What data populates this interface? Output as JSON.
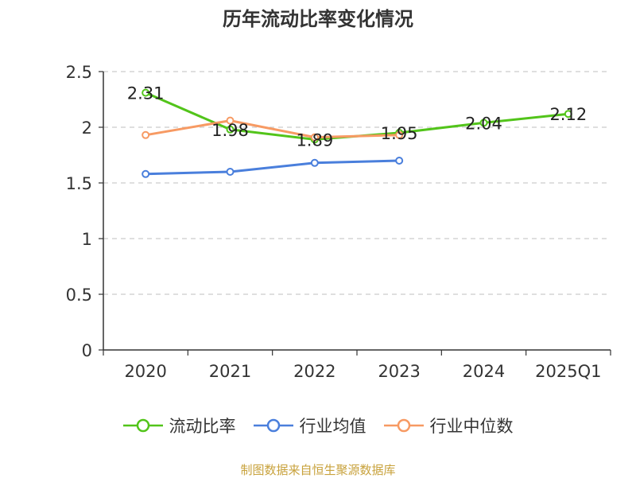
{
  "chart_data": {
    "type": "line",
    "title": "历年流动比率变化情况",
    "categories": [
      "2020",
      "2021",
      "2022",
      "2023",
      "2024",
      "2025Q1"
    ],
    "ylim": [
      0,
      2.5
    ],
    "yticks": [
      "0",
      "0.5",
      "1",
      "1.5",
      "2",
      "2.5"
    ],
    "ytick_values": [
      0,
      0.5,
      1,
      1.5,
      2,
      2.5
    ],
    "grid": true,
    "legend_position": "bottom",
    "series": [
      {
        "name": "流动比率",
        "color": "#52c41a",
        "values": [
          2.31,
          1.98,
          1.89,
          1.95,
          2.04,
          2.12
        ],
        "labels": [
          "2.31",
          "1.98",
          "1.89",
          "1.95",
          "2.04",
          "2.12"
        ],
        "show_labels": true
      },
      {
        "name": "行业均值",
        "color": "#4a7fdc",
        "values": [
          1.58,
          1.6,
          1.68,
          1.7,
          null,
          null
        ],
        "show_labels": false
      },
      {
        "name": "行业中位数",
        "color": "#f79a63",
        "values": [
          1.93,
          2.06,
          1.91,
          1.93,
          null,
          null
        ],
        "show_labels": false
      }
    ]
  },
  "source": "制图数据来自恒生聚源数据库"
}
